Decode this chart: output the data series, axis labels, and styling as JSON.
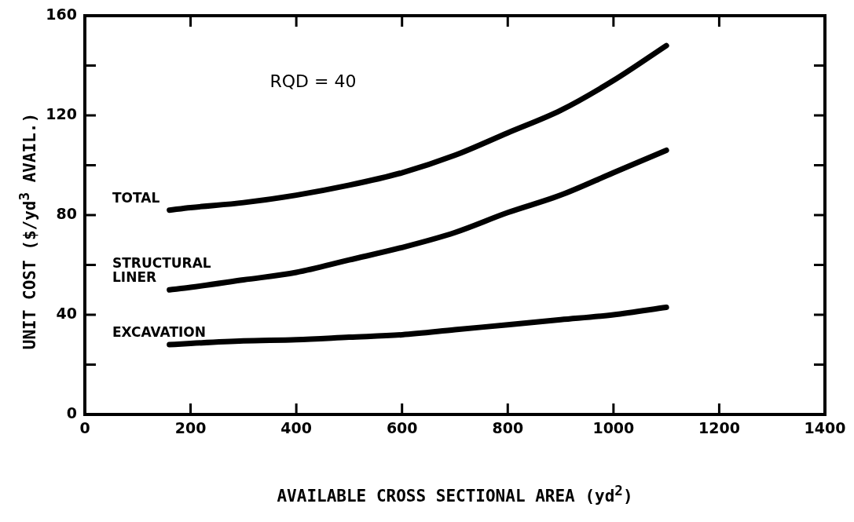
{
  "chart_data": {
    "type": "line",
    "xlabel": "AVAILABLE CROSS SECTIONAL AREA (yd$^{2}$)",
    "ylabel": "UNIT COST ($/yd$^{3}$ AVAIL.)",
    "annotations": [
      "RQD = 40"
    ],
    "xlim": [
      0,
      1400
    ],
    "xticks": [
      0,
      200,
      400,
      600,
      800,
      1000,
      1200,
      1400
    ],
    "ylim": [
      0,
      160
    ],
    "yticks": [
      0,
      {
        "value": 20,
        "label": null
      },
      40,
      {
        "value": 60,
        "label": null
      },
      80,
      {
        "value": 100,
        "label": null
      },
      120,
      {
        "value": 140,
        "label": null
      },
      160
    ],
    "grid": false,
    "legend": false,
    "marker": "none",
    "line_style": "solid",
    "series": [
      {
        "name": "TOTAL",
        "color": "#000000",
        "x": [
          160,
          200,
          300,
          400,
          500,
          600,
          700,
          800,
          900,
          1000,
          1100
        ],
        "values": [
          82,
          83,
          85,
          88,
          92,
          97,
          104,
          113,
          122,
          134,
          148
        ]
      },
      {
        "name": "STRUCTURAL LINER",
        "color": "#000000",
        "x": [
          160,
          200,
          300,
          400,
          500,
          600,
          700,
          800,
          900,
          1000,
          1100
        ],
        "values": [
          50,
          51,
          54,
          57,
          62,
          67,
          73,
          81,
          88,
          97,
          106
        ]
      },
      {
        "name": "EXCAVATION",
        "color": "#000000",
        "x": [
          160,
          200,
          300,
          400,
          500,
          600,
          700,
          800,
          900,
          1000,
          1100
        ],
        "values": [
          28,
          28.5,
          29.5,
          30,
          31,
          32,
          34,
          36,
          38,
          40,
          43
        ]
      }
    ]
  }
}
